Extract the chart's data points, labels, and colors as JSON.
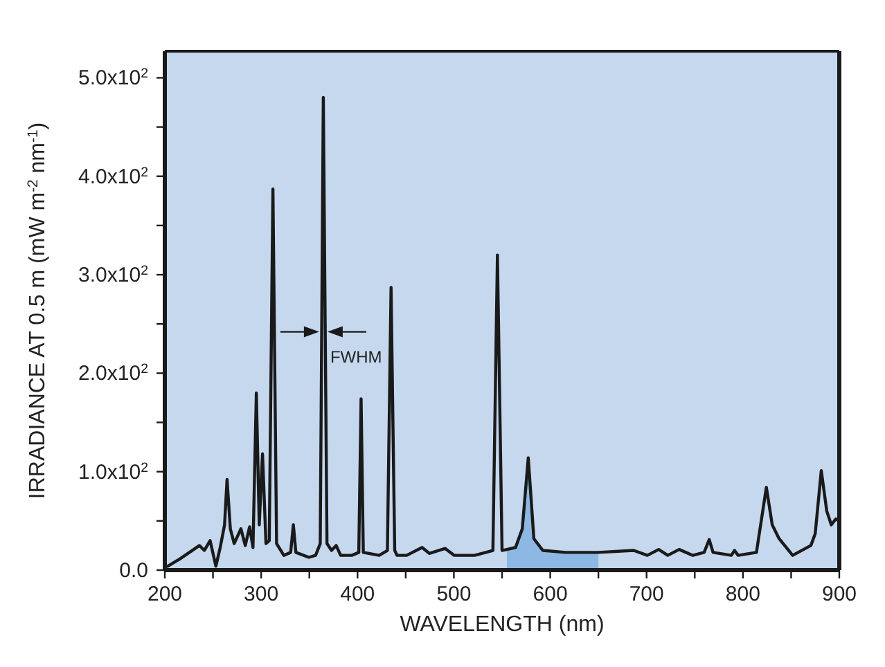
{
  "chart_data": {
    "type": "line",
    "xlabel": "WAVELENGTH (nm)",
    "ylabel": "IRRADIANCE AT 0.5 m (mW m$^{-2}$ nm$^{-1}$)",
    "annotations": [
      {
        "text": "FWHM",
        "x": 364.5,
        "y": 242
      }
    ],
    "xlim": [
      200,
      900
    ],
    "xticks": [
      200,
      {
        "value": 250,
        "label": null
      },
      300,
      {
        "value": 350,
        "label": null
      },
      400,
      {
        "value": 450,
        "label": null
      },
      500,
      {
        "value": 550,
        "label": null
      },
      600,
      {
        "value": 650,
        "label": null
      },
      700,
      {
        "value": 750,
        "label": null
      },
      800,
      {
        "value": 850,
        "label": null
      },
      900
    ],
    "ylim": [
      0,
      527
    ],
    "yticks": [
      {
        "value": 0,
        "label": "0.0"
      },
      {
        "value": 50,
        "label": null
      },
      {
        "value": 100,
        "label": "1.0x10$^{2}$"
      },
      {
        "value": 150,
        "label": null
      },
      {
        "value": 200,
        "label": "2.0x10$^{2}$"
      },
      {
        "value": 250,
        "label": null
      },
      {
        "value": 300,
        "label": "3.0x10$^{2}$"
      },
      {
        "value": 350,
        "label": null
      },
      {
        "value": 400,
        "label": "4.0x10$^{2}$"
      },
      {
        "value": 450,
        "label": null
      },
      {
        "value": 500,
        "label": "5.0x10$^{2}$"
      }
    ],
    "grid": false,
    "marker": "none",
    "line_style": "solid",
    "series": [
      {
        "type": "area",
        "color": "#8db8e3",
        "x": [
          555,
          564,
          571,
          577.2,
          583,
          592.3,
          616,
          650
        ],
        "values": [
          21,
          23,
          42,
          114,
          32,
          20,
          18,
          18
        ]
      },
      {
        "color": "#1a1a1a",
        "x": [
          203,
          215,
          236,
          241,
          247,
          253,
          257.5,
          262,
          264.6,
          268,
          272,
          279,
          283.5,
          288,
          291.5,
          295,
          298,
          301.4,
          305,
          308.4,
          312.2,
          316,
          323.5,
          330.6,
          333.4,
          336,
          349.5,
          356.5,
          361.3,
          364.5,
          368.3,
          373,
          377.8,
          382.5,
          394,
          401.3,
          403.7,
          406,
          422.5,
          431,
          434.8,
          438.6,
          441,
          451,
          467,
          474.5,
          491,
          500.4,
          521.6,
          540.5,
          545.2,
          550,
          555,
          564,
          571,
          577.2,
          583,
          592.3,
          616,
          650,
          686.6,
          700.8,
          712.5,
          722,
          733.8,
          748,
          759.7,
          765,
          769,
          788,
          791.3,
          795,
          814,
          824.3,
          830.4,
          837.5,
          851.6,
          870.5,
          875,
          881.3,
          887,
          891.7,
          896.4,
          900
        ],
        "values": [
          4,
          11,
          25,
          20,
          30,
          4,
          23,
          46,
          92,
          42,
          27,
          42,
          25,
          44,
          23,
          180,
          46,
          118,
          27,
          30,
          387,
          27,
          15,
          18,
          46,
          18,
          13,
          15,
          27,
          480,
          27,
          20,
          25,
          15,
          15,
          18,
          174,
          18,
          15,
          20,
          287,
          20,
          15,
          15,
          23,
          17,
          22,
          15,
          15,
          20,
          320,
          20,
          21,
          23,
          42,
          114,
          32,
          20,
          18,
          18,
          20,
          15,
          21,
          15,
          21,
          15,
          18,
          31,
          18,
          15,
          20,
          15,
          18,
          84,
          46,
          32,
          15,
          25,
          37,
          101,
          60,
          46,
          52,
          50
        ]
      }
    ]
  }
}
